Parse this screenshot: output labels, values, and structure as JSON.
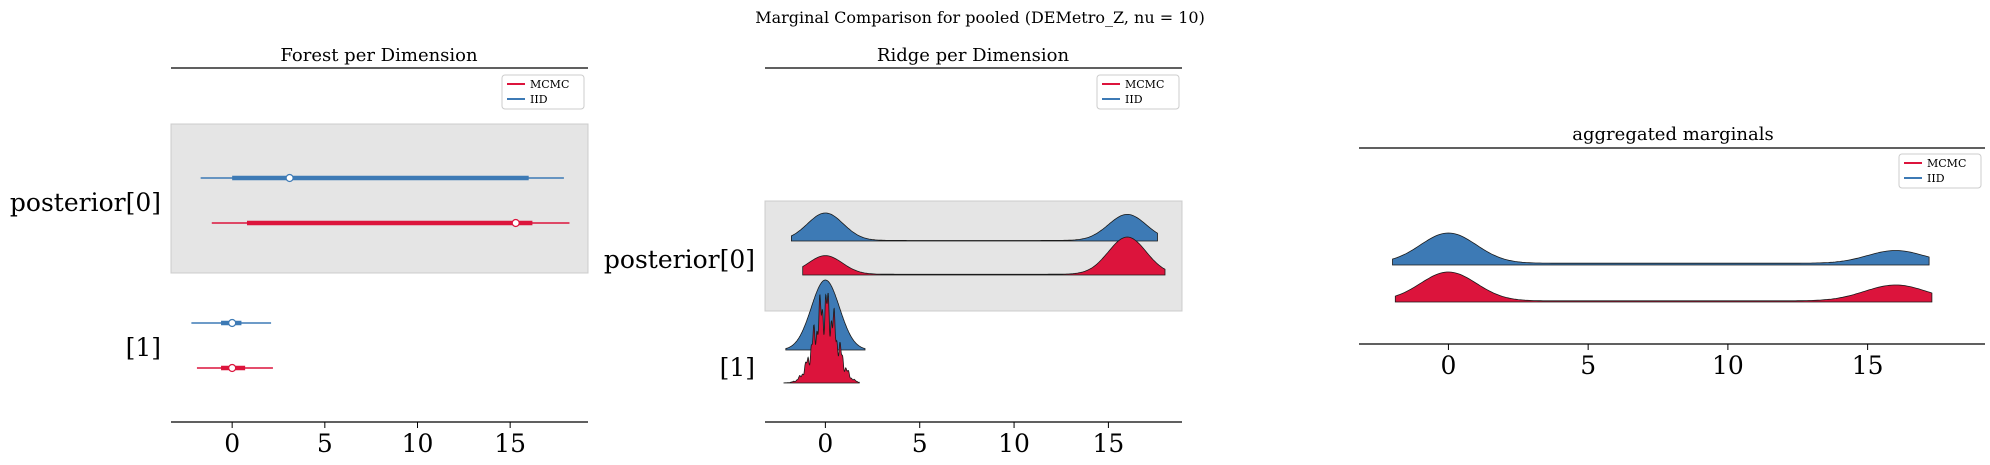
{
  "figure": {
    "suptitle": "Marginal Comparison for pooled (DEMetro_Z, nu = 10)"
  },
  "colors": {
    "mcmc": "#dc143c",
    "iid": "#3d7ab5",
    "band": "#e5e5e5"
  },
  "chart_data": [
    {
      "type": "forest",
      "title": "Forest per Dimension",
      "xlim": [
        -3.3,
        19.2
      ],
      "xticks": [
        0,
        5,
        10,
        15
      ],
      "ylabels": [
        "posterior[0]",
        "[1]"
      ],
      "legend": {
        "position": "top-right",
        "entries": [
          "MCMC",
          "IID"
        ]
      },
      "series": [
        {
          "name": "MCMC",
          "color_key": "mcmc",
          "rows": [
            {
              "dim": 0,
              "hdi": [
                -1.1,
                18.2
              ],
              "iqr": [
                0.8,
                16.2
              ],
              "median": 15.3
            },
            {
              "dim": 1,
              "hdi": [
                -1.9,
                2.2
              ],
              "iqr": [
                -0.6,
                0.7
              ],
              "median": 0.0
            }
          ]
        },
        {
          "name": "IID",
          "color_key": "iid",
          "rows": [
            {
              "dim": 0,
              "hdi": [
                -1.7,
                17.9
              ],
              "iqr": [
                0.0,
                16.0
              ],
              "median": 3.1
            },
            {
              "dim": 1,
              "hdi": [
                -2.2,
                2.1
              ],
              "iqr": [
                -0.6,
                0.5
              ],
              "median": 0.0
            }
          ]
        }
      ]
    },
    {
      "type": "ridge",
      "title": "Ridge per Dimension",
      "xlim": [
        -3.2,
        18.9
      ],
      "xticks": [
        0,
        5,
        10,
        15
      ],
      "ylabels": [
        "posterior[0]",
        "[1]"
      ],
      "legend": {
        "position": "top-right",
        "entries": [
          "MCMC",
          "IID"
        ]
      },
      "series": [
        {
          "name": "MCMC",
          "color_key": "mcmc",
          "rows": [
            {
              "dim": 0,
              "range": [
                -1.2,
                18.0
              ],
              "components": [
                [
                  0.0,
                  0.9,
                  0.5
                ],
                [
                  16.0,
                  1.0,
                  1.0
                ]
              ],
              "floor": 0.02
            },
            {
              "dim": 1,
              "range": [
                -2.2,
                1.8
              ],
              "components": [
                [
                  0.0,
                  0.6,
                  1.0
                ]
              ],
              "floor": 0.0,
              "noisy": true
            }
          ]
        },
        {
          "name": "IID",
          "color_key": "iid",
          "rows": [
            {
              "dim": 0,
              "range": [
                -1.8,
                17.6
              ],
              "components": [
                [
                  0.0,
                  0.95,
                  1.0
                ],
                [
                  16.0,
                  1.0,
                  0.95
                ]
              ],
              "floor": 0.02
            },
            {
              "dim": 1,
              "range": [
                -2.1,
                2.1
              ],
              "components": [
                [
                  0.0,
                  0.75,
                  1.0
                ]
              ],
              "floor": 0.0
            }
          ]
        }
      ]
    },
    {
      "type": "ridge",
      "title": "aggregated marginals",
      "xlim": [
        -3.2,
        19.2
      ],
      "xticks": [
        0,
        5,
        10,
        15
      ],
      "legend": {
        "position": "top-right",
        "entries": [
          "MCMC",
          "IID"
        ]
      },
      "series": [
        {
          "name": "IID",
          "color_key": "iid",
          "range": [
            -2.0,
            17.2
          ],
          "components": [
            [
              0.0,
              1.0,
              1.0
            ],
            [
              16.0,
              1.0,
              0.42
            ]
          ],
          "floor": 0.06
        },
        {
          "name": "MCMC",
          "color_key": "mcmc",
          "range": [
            -1.9,
            17.3
          ],
          "components": [
            [
              0.0,
              1.0,
              1.0
            ],
            [
              16.0,
              1.1,
              0.55
            ]
          ],
          "floor": 0.04
        }
      ]
    }
  ]
}
